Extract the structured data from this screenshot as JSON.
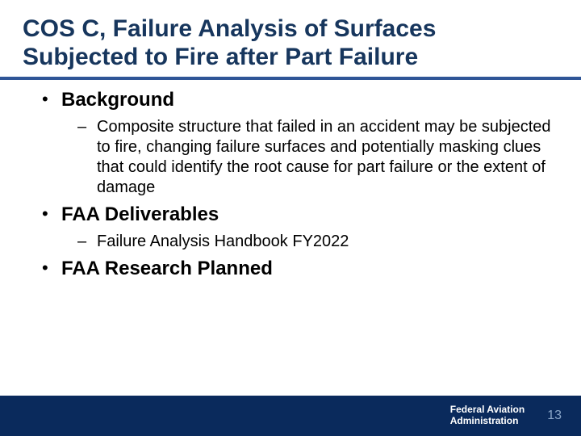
{
  "title": "COS C, Failure Analysis of Surfaces Subjected to Fire after Part Failure",
  "colors": {
    "title": "#17365d",
    "underline": "#2f5597",
    "footer_bg": "#0a2a5c",
    "footer_text": "#ffffff",
    "page_number": "#8aa6c9",
    "body_text": "#000000",
    "background": "#ffffff"
  },
  "typography": {
    "title_fontsize": 30,
    "lvl1_fontsize": 24,
    "lvl2_fontsize": 20,
    "footer_org_fontsize": 12,
    "page_number_fontsize": 16,
    "font_family": "Arial"
  },
  "bullets": [
    {
      "label": "Background",
      "sub": [
        "Composite structure that failed in an accident may be subjected to fire, changing failure surfaces and potentially masking clues that could identify the root cause for part failure or the extent of damage"
      ]
    },
    {
      "label": "FAA Deliverables",
      "sub": [
        "Failure Analysis Handbook FY2022"
      ]
    },
    {
      "label": "FAA Research Planned",
      "sub": []
    }
  ],
  "footer": {
    "org_line1": "Federal Aviation",
    "org_line2": "Administration",
    "page_number": "13"
  }
}
